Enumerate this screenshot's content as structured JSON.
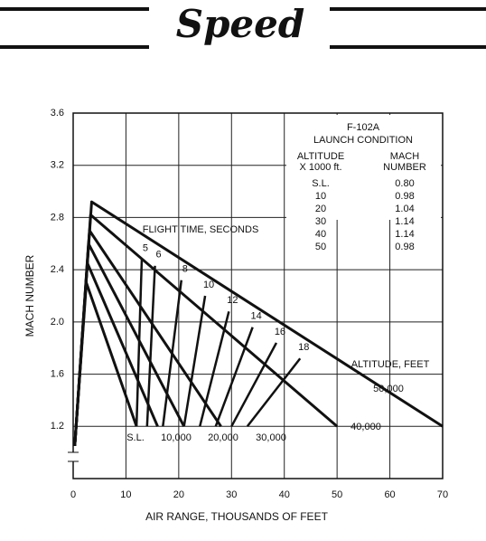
{
  "header": {
    "title": "Speed"
  },
  "chart_data": {
    "type": "line",
    "x_label": "AIR RANGE, THOUSANDS OF FEET",
    "y_label": "MACH NUMBER",
    "xlim": [
      0,
      70
    ],
    "ylim": [
      0.8,
      3.6
    ],
    "xticks": [
      0,
      10,
      20,
      30,
      40,
      50,
      60,
      70
    ],
    "yticks": [
      1.2,
      1.6,
      {
        "value": 2,
        "label": "2.0"
      },
      2.4,
      2.8,
      3.2,
      3.6
    ],
    "grid": true,
    "color": "#111111",
    "legend_title": "ALTITUDE, FEET",
    "series": [
      {
        "name": "S.L.",
        "x": [
          0.3,
          2.5,
          12
        ],
        "y": [
          1.05,
          2.3,
          1.2
        ]
      },
      {
        "name": "10,000",
        "x": [
          0.3,
          2.7,
          16
        ],
        "y": [
          1.05,
          2.45,
          1.2
        ]
      },
      {
        "name": "20,000",
        "x": [
          0.3,
          2.9,
          21
        ],
        "y": [
          1.05,
          2.6,
          1.2
        ]
      },
      {
        "name": "30,000",
        "x": [
          0.3,
          3.1,
          28
        ],
        "y": [
          1.05,
          2.7,
          1.2
        ]
      },
      {
        "name": "40,000",
        "x": [
          0.3,
          3.3,
          50
        ],
        "y": [
          1.05,
          2.82,
          1.2
        ]
      },
      {
        "name": "50,000",
        "x": [
          0.3,
          3.5,
          70
        ],
        "y": [
          1.05,
          2.92,
          1.2
        ]
      }
    ],
    "time_title": "FLIGHT TIME, SECONDS",
    "time_series": [
      {
        "name": "5",
        "x": [
          13,
          12
        ],
        "y": [
          2.48,
          1.2
        ]
      },
      {
        "name": "6",
        "x": [
          15.5,
          14
        ],
        "y": [
          2.43,
          1.2
        ]
      },
      {
        "name": "8",
        "x": [
          20.5,
          17
        ],
        "y": [
          2.32,
          1.2
        ]
      },
      {
        "name": "10",
        "x": [
          25,
          21
        ],
        "y": [
          2.2,
          1.2
        ]
      },
      {
        "name": "12",
        "x": [
          29.5,
          24
        ],
        "y": [
          2.08,
          1.2
        ]
      },
      {
        "name": "14",
        "x": [
          34,
          27
        ],
        "y": [
          1.96,
          1.2
        ]
      },
      {
        "name": "16",
        "x": [
          38.5,
          30
        ],
        "y": [
          1.84,
          1.2
        ]
      },
      {
        "name": "18",
        "x": [
          43,
          33
        ],
        "y": [
          1.72,
          1.2
        ]
      }
    ],
    "inset": {
      "title": "F-102A",
      "subtitle": "LAUNCH CONDITION",
      "col_headers": [
        [
          "ALTITUDE",
          "X 1000 ft."
        ],
        [
          "MACH",
          "NUMBER"
        ]
      ],
      "rows": [
        [
          "S.L.",
          "0.80"
        ],
        [
          "10",
          "0.98"
        ],
        [
          "20",
          "1.04"
        ],
        [
          "30",
          "1.14"
        ],
        [
          "40",
          "1.14"
        ],
        [
          "50",
          "0.98"
        ]
      ]
    }
  }
}
